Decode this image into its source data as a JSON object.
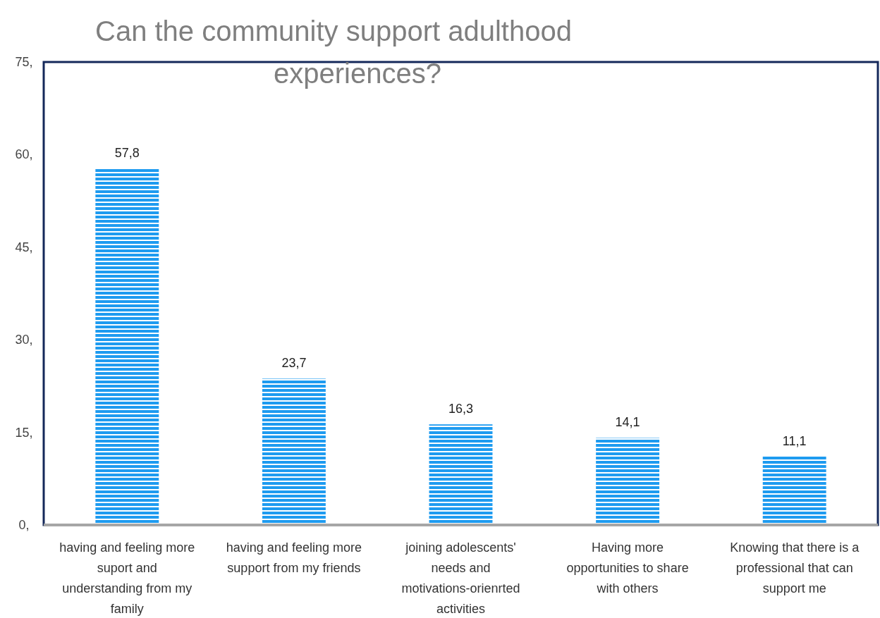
{
  "chart_data": {
    "type": "bar",
    "title": "Can the community support adulthood experiences?",
    "categories": [
      "having and feeling more suport and understanding from my family",
      "having and feeling more support from my friends",
      "joining adolescents' needs and motivations-orienrted activities",
      "Having more opportunities to share with others",
      "Knowing that there is a professional that can support me"
    ],
    "series": [
      {
        "color": "#1e9bf0",
        "values": [
          57.8,
          23.7,
          16.3,
          14.1,
          11.1
        ],
        "value_labels": [
          "57,8",
          "23,7",
          "16,3",
          "14,1",
          "11,1"
        ]
      }
    ],
    "ylim": [
      0,
      75
    ],
    "yticks": [
      {
        "value": 0,
        "label": "0,"
      },
      {
        "value": 15,
        "label": "15,"
      },
      {
        "value": 30,
        "label": "30,"
      },
      {
        "value": 45,
        "label": "45,"
      },
      {
        "value": 60,
        "label": "60,"
      },
      {
        "value": 75,
        "label": "75,"
      }
    ],
    "grid": false
  }
}
